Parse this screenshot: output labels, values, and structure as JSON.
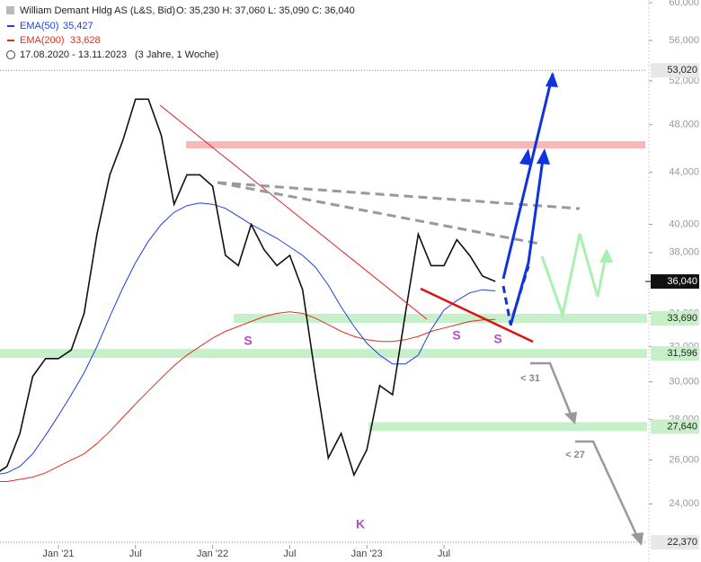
{
  "chart_data": {
    "type": "line",
    "header": {
      "title": "William Demant Hldg AS (L&S, Bid)",
      "ohlc": "O: 35,230  H: 37,060  L: 35,090  C: 36,040",
      "ema50_value": "35,427",
      "ema200_value": "33,628",
      "range": "17.08.2020 - 13.11.2023",
      "period": "(3 Jahre, 1 Woche)"
    },
    "x": [
      "2020-08",
      "2020-09",
      "2020-10",
      "2020-11",
      "2020-12",
      "2021-01",
      "2021-02",
      "2021-03",
      "2021-04",
      "2021-05",
      "2021-06",
      "2021-07",
      "2021-08",
      "2021-09",
      "2021-10",
      "2021-11",
      "2021-12",
      "2022-01",
      "2022-02",
      "2022-03",
      "2022-04",
      "2022-05",
      "2022-06",
      "2022-07",
      "2022-08",
      "2022-09",
      "2022-10",
      "2022-11",
      "2022-12",
      "2023-01",
      "2023-02",
      "2023-03",
      "2023-04",
      "2023-05",
      "2023-06",
      "2023-07",
      "2023-08",
      "2023-09",
      "2023-10",
      "2023-11"
    ],
    "series": [
      {
        "name": "William Demant Hldg AS",
        "color": "#111111",
        "values": [
          25300,
          25700,
          27300,
          30300,
          31300,
          31300,
          31800,
          34000,
          39300,
          43800,
          46600,
          50300,
          50300,
          47100,
          41500,
          43800,
          43800,
          42900,
          37800,
          37100,
          40000,
          38200,
          37100,
          37800,
          35500,
          30300,
          26100,
          27300,
          25300,
          26500,
          29800,
          29300,
          34000,
          39300,
          37100,
          37100,
          38900,
          37800,
          36400,
          36040
        ]
      },
      {
        "name": "EMA(50)",
        "color": "#1f3fe0",
        "values": [
          25300,
          25400,
          25700,
          26300,
          27200,
          28200,
          29300,
          30500,
          32000,
          33800,
          35600,
          37300,
          38800,
          40000,
          40900,
          41400,
          41600,
          41500,
          41200,
          40600,
          40000,
          39500,
          39000,
          38400,
          37800,
          37000,
          35800,
          34400,
          33200,
          32200,
          31500,
          31000,
          31000,
          31500,
          33000,
          34200,
          34800,
          35300,
          35500,
          35427
        ]
      },
      {
        "name": "EMA(200)",
        "color": "#e0301e",
        "values": [
          25000,
          25000,
          25100,
          25200,
          25400,
          25700,
          26000,
          26300,
          26800,
          27400,
          28100,
          28800,
          29500,
          30200,
          30900,
          31500,
          32000,
          32500,
          32900,
          33200,
          33500,
          33800,
          34000,
          34100,
          34000,
          33700,
          33300,
          32900,
          32600,
          32400,
          32300,
          32300,
          32400,
          32600,
          32900,
          33100,
          33300,
          33500,
          33600,
          33628
        ]
      }
    ],
    "log_scale": true,
    "ylim": [
      22300,
      60300
    ],
    "yticks": [
      {
        "value": 60000,
        "label": "60,000"
      },
      {
        "value": 56000,
        "label": "56,000"
      },
      {
        "value": 52000,
        "label": "52,000"
      },
      {
        "value": 48000,
        "label": "48,000"
      },
      {
        "value": 44000,
        "label": "44,000"
      },
      {
        "value": 40000,
        "label": "40,000"
      },
      {
        "value": 38000,
        "label": "38,000"
      },
      {
        "value": 34000,
        "label": "34,000"
      },
      {
        "value": 32000,
        "label": "32,000"
      },
      {
        "value": 30000,
        "label": "30,000"
      },
      {
        "value": 28000,
        "label": "28,000"
      },
      {
        "value": 26000,
        "label": "26,000"
      },
      {
        "value": 24000,
        "label": "24,000"
      }
    ],
    "xticks": [
      {
        "value": "2021-01",
        "label": "Jan '21"
      },
      {
        "value": "2021-07",
        "label": "Jul"
      },
      {
        "value": "2022-01",
        "label": "Jan '22"
      },
      {
        "value": "2022-07",
        "label": "Jul"
      },
      {
        "value": "2023-01",
        "label": "Jan '23"
      },
      {
        "value": "2023-07",
        "label": "Jul"
      }
    ],
    "levels": [
      {
        "value": 53020,
        "label": "53,020",
        "style": "dotted"
      },
      {
        "value": 33690,
        "label": "33,690",
        "style": "band"
      },
      {
        "value": 31596,
        "label": "31,596",
        "style": "band"
      },
      {
        "value": 27640,
        "label": "27,640",
        "style": "band"
      },
      {
        "value": 22370,
        "label": "22,370",
        "style": "dotted"
      }
    ],
    "last_price": {
      "value": 36040,
      "label": "36,040"
    },
    "annotations": [
      "S",
      "S",
      "S",
      "K",
      "< 31",
      "< 27"
    ]
  }
}
